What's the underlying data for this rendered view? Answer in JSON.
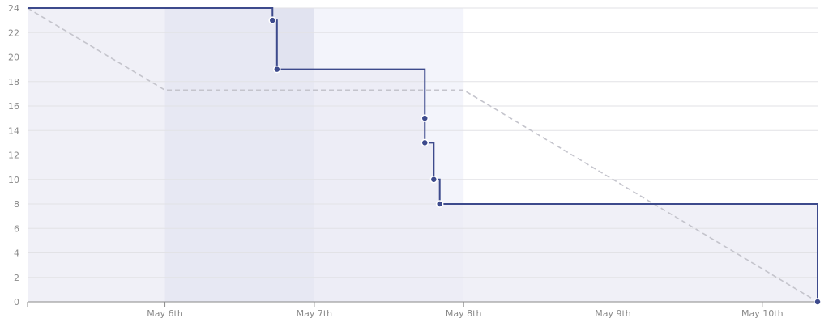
{
  "chart_data": {
    "type": "line",
    "title": "",
    "xlabel": "",
    "ylabel": "",
    "ylim": [
      0,
      24
    ],
    "yticks": [
      0,
      2,
      4,
      6,
      8,
      10,
      12,
      14,
      16,
      18,
      20,
      22,
      24
    ],
    "xlim": [
      5.08,
      10.37
    ],
    "xticks": [
      {
        "value": 6,
        "label": "May 6th"
      },
      {
        "value": 7,
        "label": "May 7th"
      },
      {
        "value": 8,
        "label": "May 8th"
      },
      {
        "value": 9,
        "label": "May 9th"
      },
      {
        "value": 10,
        "label": "May 10th"
      }
    ],
    "grid": true,
    "legend": "none",
    "colors": {
      "series": "#3d4a8c",
      "area": "#e9eaf4",
      "ideal": "#c4c4cc",
      "grid": "#e2e2e6",
      "axis": "#8a8a8a",
      "band_weekend": "#e1e3f0",
      "band_current": "#f3f4fb"
    },
    "bands": [
      {
        "kind": "weekend",
        "start": 6.0,
        "end": 7.0
      },
      {
        "kind": "weekend",
        "start": 7.0,
        "end": 8.0
      }
    ],
    "series": [
      {
        "kind": "actual",
        "shape": "step",
        "points": [
          {
            "x": 5.08,
            "y": 24
          },
          {
            "x": 6.72,
            "y": 24,
            "marker": false
          },
          {
            "x": 6.72,
            "y": 23
          },
          {
            "x": 6.75,
            "y": 23,
            "marker": false
          },
          {
            "x": 6.75,
            "y": 19
          },
          {
            "x": 7.74,
            "y": 19,
            "marker": false
          },
          {
            "x": 7.74,
            "y": 15
          },
          {
            "x": 7.74,
            "y": 13
          },
          {
            "x": 7.8,
            "y": 13,
            "marker": false
          },
          {
            "x": 7.8,
            "y": 10
          },
          {
            "x": 7.84,
            "y": 10,
            "marker": false
          },
          {
            "x": 7.84,
            "y": 8
          },
          {
            "x": 10.37,
            "y": 8,
            "marker": false
          },
          {
            "x": 10.37,
            "y": 0
          }
        ]
      },
      {
        "kind": "guideline",
        "shape": "dashed",
        "points": [
          {
            "x": 5.08,
            "y": 24
          },
          {
            "x": 6.0,
            "y": 17.3
          },
          {
            "x": 8.0,
            "y": 17.3
          },
          {
            "x": 10.37,
            "y": 0
          }
        ]
      }
    ]
  }
}
